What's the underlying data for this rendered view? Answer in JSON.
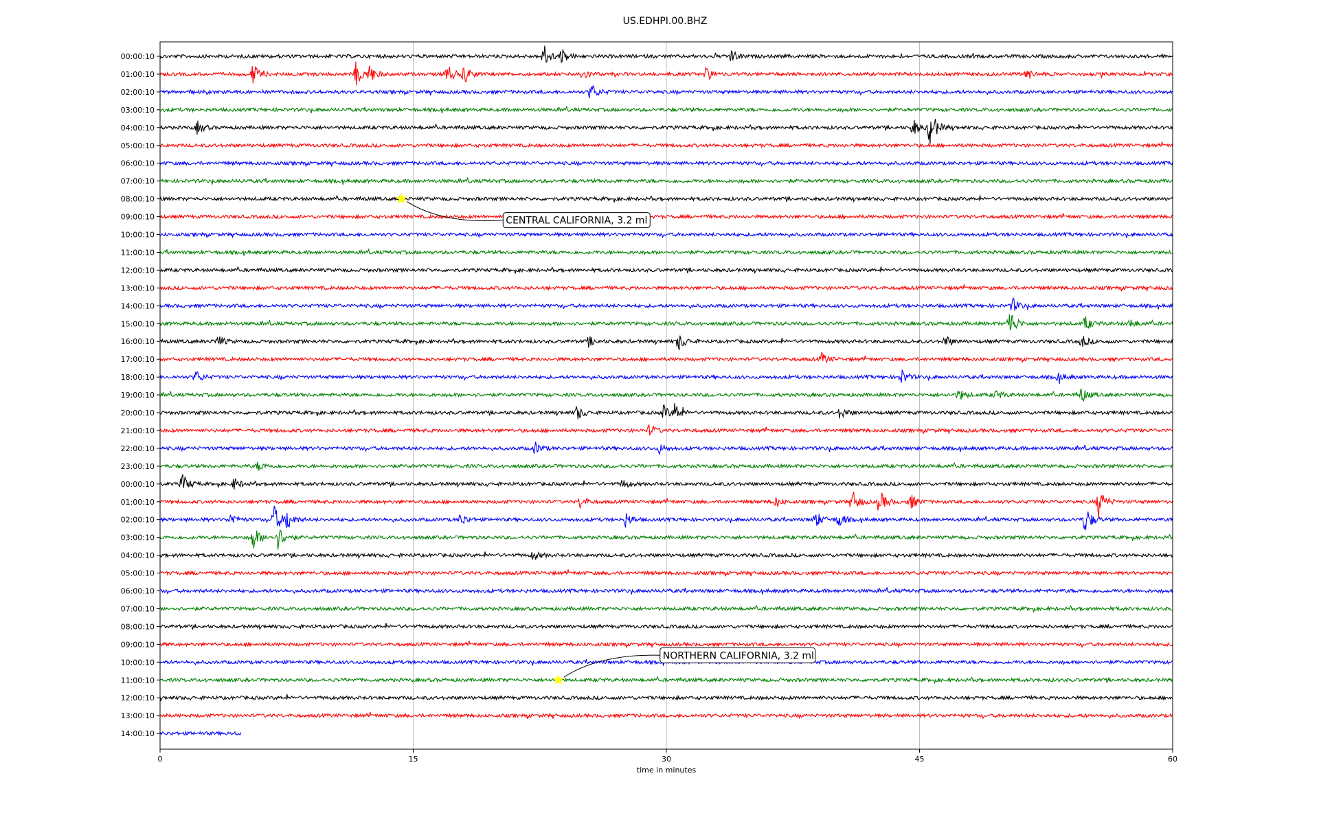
{
  "chart_data": {
    "type": "line",
    "title": "US.EDHPI.00.BHZ",
    "xlabel": "time in minutes",
    "xlim": [
      0,
      60
    ],
    "x_ticks": [
      "0",
      "15",
      "30",
      "45",
      "60"
    ],
    "x_tick_values": [
      0,
      15,
      30,
      45,
      60
    ],
    "grid": "vertical",
    "line_colors": [
      "#000000",
      "#ff0000",
      "#0000ff",
      "#008000"
    ],
    "row_labels": [
      "00:00:10",
      "01:00:10",
      "02:00:10",
      "03:00:10",
      "04:00:10",
      "05:00:10",
      "06:00:10",
      "07:00:10",
      "08:00:10",
      "09:00:10",
      "10:00:10",
      "11:00:10",
      "12:00:10",
      "13:00:10",
      "14:00:10",
      "15:00:10",
      "16:00:10",
      "17:00:10",
      "18:00:10",
      "19:00:10",
      "20:00:10",
      "21:00:10",
      "22:00:10",
      "23:00:10",
      "00:00:10",
      "01:00:10",
      "02:00:10",
      "03:00:10",
      "04:00:10",
      "05:00:10",
      "06:00:10",
      "07:00:10",
      "08:00:10",
      "09:00:10",
      "10:00:10",
      "11:00:10",
      "12:00:10",
      "13:00:10",
      "14:00:10"
    ],
    "last_row_end_minute": 4.8,
    "events": [
      {
        "row": 0,
        "minute": 22.7,
        "amp": 0.8
      },
      {
        "row": 0,
        "minute": 23.8,
        "amp": 0.5
      },
      {
        "row": 0,
        "minute": 33.8,
        "amp": 0.4
      },
      {
        "row": 1,
        "minute": 5.5,
        "amp": 0.7
      },
      {
        "row": 1,
        "minute": 11.6,
        "amp": 0.8
      },
      {
        "row": 1,
        "minute": 12.4,
        "amp": 0.6
      },
      {
        "row": 1,
        "minute": 17.0,
        "amp": 0.7
      },
      {
        "row": 1,
        "minute": 18.0,
        "amp": 0.6
      },
      {
        "row": 1,
        "minute": 25.0,
        "amp": 0.4
      },
      {
        "row": 1,
        "minute": 32.3,
        "amp": 0.5
      },
      {
        "row": 1,
        "minute": 51.3,
        "amp": 0.4
      },
      {
        "row": 2,
        "minute": 25.5,
        "amp": 0.6
      },
      {
        "row": 4,
        "minute": 2.2,
        "amp": 0.4
      },
      {
        "row": 4,
        "minute": 45.6,
        "amp": 1.4
      },
      {
        "row": 4,
        "minute": 44.6,
        "amp": 0.6
      },
      {
        "row": 14,
        "minute": 50.5,
        "amp": 0.5
      },
      {
        "row": 15,
        "minute": 50.3,
        "amp": 1.1
      },
      {
        "row": 15,
        "minute": 54.8,
        "amp": 0.5
      },
      {
        "row": 15,
        "minute": 57.5,
        "amp": 0.3
      },
      {
        "row": 16,
        "minute": 3.4,
        "amp": 0.4
      },
      {
        "row": 16,
        "minute": 25.4,
        "amp": 0.3
      },
      {
        "row": 16,
        "minute": 30.7,
        "amp": 0.6
      },
      {
        "row": 16,
        "minute": 46.5,
        "amp": 0.4
      },
      {
        "row": 16,
        "minute": 54.6,
        "amp": 0.4
      },
      {
        "row": 17,
        "minute": 39.2,
        "amp": 0.4
      },
      {
        "row": 18,
        "minute": 2.1,
        "amp": 0.4
      },
      {
        "row": 18,
        "minute": 43.9,
        "amp": 0.5
      },
      {
        "row": 18,
        "minute": 53.2,
        "amp": 0.3
      },
      {
        "row": 19,
        "minute": 47.3,
        "amp": 0.4
      },
      {
        "row": 19,
        "minute": 49.5,
        "amp": 0.3
      },
      {
        "row": 19,
        "minute": 54.6,
        "amp": 0.5
      },
      {
        "row": 20,
        "minute": 24.7,
        "amp": 0.5
      },
      {
        "row": 20,
        "minute": 29.8,
        "amp": 0.5
      },
      {
        "row": 20,
        "minute": 30.5,
        "amp": 0.6
      },
      {
        "row": 20,
        "minute": 40.3,
        "amp": 0.4
      },
      {
        "row": 21,
        "minute": 29.0,
        "amp": 0.4
      },
      {
        "row": 22,
        "minute": 22.2,
        "amp": 0.4
      },
      {
        "row": 22,
        "minute": 29.6,
        "amp": 0.3
      },
      {
        "row": 23,
        "minute": 5.8,
        "amp": 0.3
      },
      {
        "row": 24,
        "minute": 1.3,
        "amp": 0.7
      },
      {
        "row": 24,
        "minute": 4.4,
        "amp": 0.4
      },
      {
        "row": 24,
        "minute": 27.4,
        "amp": 0.3
      },
      {
        "row": 25,
        "minute": 24.9,
        "amp": 0.4
      },
      {
        "row": 25,
        "minute": 36.5,
        "amp": 0.3
      },
      {
        "row": 25,
        "minute": 41.0,
        "amp": 0.8
      },
      {
        "row": 25,
        "minute": 42.6,
        "amp": 0.8
      },
      {
        "row": 25,
        "minute": 44.4,
        "amp": 0.6
      },
      {
        "row": 25,
        "minute": 55.6,
        "amp": 1.0
      },
      {
        "row": 26,
        "minute": 4.2,
        "amp": 0.4
      },
      {
        "row": 26,
        "minute": 6.7,
        "amp": 1.1
      },
      {
        "row": 26,
        "minute": 7.5,
        "amp": 0.7
      },
      {
        "row": 26,
        "minute": 17.8,
        "amp": 0.4
      },
      {
        "row": 26,
        "minute": 27.6,
        "amp": 0.5
      },
      {
        "row": 26,
        "minute": 38.8,
        "amp": 0.6
      },
      {
        "row": 26,
        "minute": 40.2,
        "amp": 0.5
      },
      {
        "row": 26,
        "minute": 54.8,
        "amp": 1.0
      },
      {
        "row": 27,
        "minute": 5.5,
        "amp": 0.8
      },
      {
        "row": 27,
        "minute": 7.0,
        "amp": 0.8
      },
      {
        "row": 28,
        "minute": 22.1,
        "amp": 0.3
      }
    ],
    "annotations": [
      {
        "text": "CENTRAL CALIFORNIA, 3.2 ml",
        "row": 8,
        "minute": 14.3
      },
      {
        "text": "NORTHERN CALIFORNIA, 3.2 ml",
        "row": 35,
        "minute": 23.6
      }
    ],
    "marker_color": "#ffff00"
  }
}
